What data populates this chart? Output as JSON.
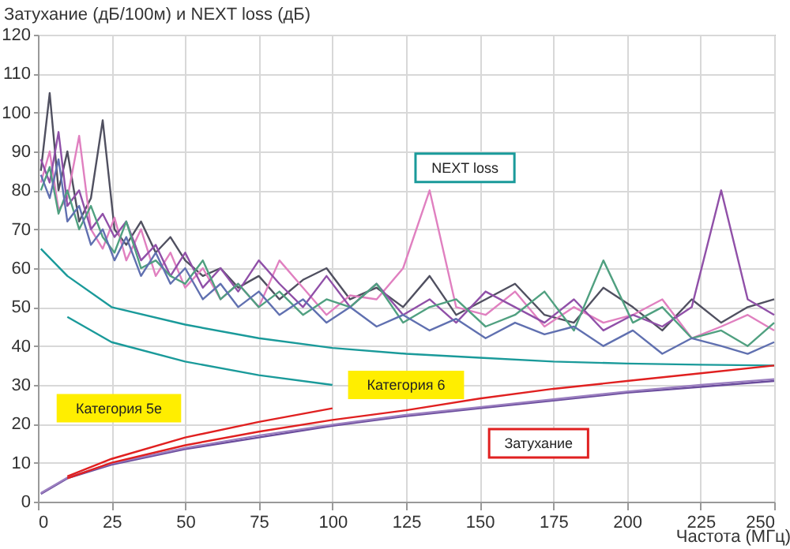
{
  "chart_data": {
    "type": "line",
    "xlabel": "Частота (МГц)",
    "ylabel": "Затухание (дБ/100м) и NEXT loss (дБ)",
    "x": [
      1,
      4,
      7,
      10,
      14,
      18,
      22,
      26,
      30,
      35,
      40,
      45,
      50,
      56,
      62,
      68,
      75,
      82,
      90,
      98,
      106,
      115,
      124,
      133,
      142,
      152,
      162,
      172,
      182,
      192,
      202,
      212,
      222,
      232,
      241,
      250
    ],
    "xlim": [
      0,
      250
    ],
    "xticks": [
      0,
      25,
      50,
      75,
      100,
      125,
      150,
      175,
      200,
      225,
      250
    ],
    "ylim": [
      0,
      120
    ],
    "yticks": [
      0,
      10,
      20,
      30,
      40,
      50,
      60,
      70,
      80,
      90,
      100,
      110,
      120
    ],
    "grid": true,
    "legend": false,
    "marker": "none",
    "series": [
      {
        "color": "#505060",
        "values": [
          85,
          105,
          80,
          90,
          72,
          78,
          98,
          70,
          66,
          72,
          64,
          68,
          62,
          58,
          60,
          55,
          58,
          52,
          57,
          60,
          52,
          55,
          50,
          58,
          48,
          52,
          56,
          48,
          46,
          55,
          50,
          44,
          52,
          46,
          50,
          52
        ]
      },
      {
        "color": "#e080c0",
        "values": [
          82,
          90,
          75,
          78,
          94,
          70,
          65,
          73,
          62,
          70,
          58,
          64,
          55,
          60,
          52,
          56,
          50,
          62,
          55,
          48,
          53,
          52,
          60,
          80,
          50,
          48,
          54,
          45,
          50,
          46,
          48,
          52,
          42,
          45,
          48,
          44
        ]
      },
      {
        "color": "#9050a8",
        "values": [
          88,
          82,
          95,
          76,
          80,
          70,
          74,
          68,
          72,
          62,
          66,
          58,
          64,
          55,
          60,
          54,
          62,
          56,
          50,
          58,
          50,
          56,
          48,
          52,
          46,
          54,
          50,
          46,
          52,
          44,
          48,
          45,
          50,
          80,
          52,
          48
        ]
      },
      {
        "color": "#50a080",
        "values": [
          80,
          86,
          74,
          80,
          70,
          76,
          68,
          64,
          72,
          60,
          62,
          58,
          56,
          62,
          52,
          56,
          50,
          54,
          48,
          52,
          50,
          56,
          46,
          50,
          52,
          45,
          48,
          54,
          44,
          62,
          46,
          50,
          42,
          44,
          40,
          46
        ]
      },
      {
        "color": "#6070b0",
        "values": [
          84,
          78,
          88,
          72,
          76,
          66,
          70,
          62,
          68,
          58,
          64,
          56,
          60,
          52,
          56,
          50,
          54,
          48,
          52,
          46,
          50,
          45,
          48,
          44,
          47,
          42,
          46,
          43,
          45,
          40,
          44,
          38,
          42,
          40,
          38,
          41
        ]
      },
      {
        "color": "#6a4c9c",
        "x": [
          1,
          10,
          25,
          50,
          75,
          100,
          125,
          150,
          175,
          200,
          225,
          250
        ],
        "values": [
          2,
          6,
          9.5,
          13.5,
          16.5,
          19.5,
          22,
          24,
          26,
          28,
          29.5,
          31
        ]
      },
      {
        "color": "#9b7fc0",
        "x": [
          1,
          10,
          25,
          50,
          75,
          100,
          125,
          150,
          175,
          200,
          225,
          250
        ],
        "values": [
          2.2,
          6.2,
          9.8,
          13.8,
          17,
          19.8,
          22.3,
          24.3,
          26.3,
          28.3,
          30,
          31.5
        ]
      },
      {
        "color": "#1a9a9a",
        "x": [
          10,
          25,
          50,
          75,
          100
        ],
        "values": [
          47.5,
          41,
          36,
          32.5,
          30
        ]
      },
      {
        "color": "#1a9a9a",
        "x": [
          1,
          10,
          25,
          50,
          75,
          100,
          125,
          150,
          175,
          200,
          225,
          250
        ],
        "values": [
          65,
          58,
          50,
          45.5,
          42,
          39.5,
          38,
          37,
          36,
          35.5,
          35.2,
          35
        ]
      },
      {
        "color": "#e02020",
        "x": [
          10,
          25,
          50,
          75,
          100
        ],
        "values": [
          6.5,
          11,
          16.5,
          20.5,
          24
        ]
      },
      {
        "color": "#e02020",
        "x": [
          10,
          25,
          50,
          75,
          100,
          125,
          150,
          175,
          200,
          225,
          250
        ],
        "values": [
          6,
          10,
          14.5,
          18,
          21,
          23.5,
          26.5,
          29,
          31,
          33,
          35
        ]
      }
    ],
    "annotations": [
      "NEXT loss",
      "Категория 6",
      "Категория 5е",
      "Затухание"
    ]
  }
}
